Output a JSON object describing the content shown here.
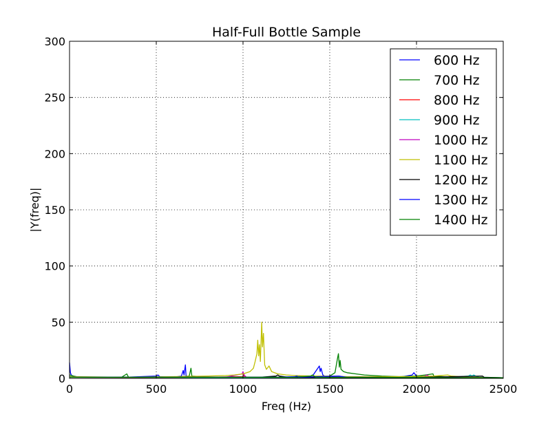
{
  "chart_data": {
    "type": "line",
    "title": "Half-Full Bottle Sample",
    "xlabel": "Freq (Hz)",
    "ylabel": "|Y(freq)|",
    "xlim": [
      0,
      2500
    ],
    "ylim": [
      0,
      300
    ],
    "xticks": [
      "0",
      "500",
      "1000",
      "1500",
      "2000",
      "2500"
    ],
    "yticks": [
      "0",
      "50",
      "100",
      "150",
      "200",
      "250",
      "300"
    ],
    "grid": true,
    "legend_position": "top-right",
    "series": [
      {
        "name": "600 Hz",
        "color": "#0000ff",
        "points": [
          [
            0,
            14
          ],
          [
            5,
            5
          ],
          [
            10,
            3
          ],
          [
            20,
            2
          ],
          [
            40,
            1.5
          ],
          [
            100,
            1
          ],
          [
            320,
            1
          ],
          [
            500,
            2
          ],
          [
            510,
            3
          ],
          [
            520,
            1.5
          ],
          [
            600,
            1
          ],
          [
            645,
            2
          ],
          [
            655,
            7
          ],
          [
            660,
            3
          ],
          [
            668,
            12
          ],
          [
            672,
            2
          ],
          [
            700,
            1
          ],
          [
            800,
            1
          ],
          [
            1000,
            1
          ],
          [
            1200,
            1
          ],
          [
            1300,
            1.5
          ],
          [
            1400,
            2
          ],
          [
            1440,
            11
          ],
          [
            1445,
            6
          ],
          [
            1450,
            9
          ],
          [
            1460,
            3
          ],
          [
            1470,
            2
          ],
          [
            1490,
            1
          ],
          [
            1550,
            2
          ],
          [
            1600,
            1
          ],
          [
            1900,
            1
          ],
          [
            1975,
            3
          ],
          [
            1985,
            5
          ],
          [
            1995,
            3
          ],
          [
            2000,
            1
          ],
          [
            2200,
            1
          ],
          [
            2500,
            0.5
          ]
        ]
      },
      {
        "name": "700 Hz",
        "color": "#008000",
        "points": [
          [
            0,
            3
          ],
          [
            50,
            1
          ],
          [
            300,
            1
          ],
          [
            330,
            4
          ],
          [
            340,
            1
          ],
          [
            600,
            1
          ],
          [
            690,
            2
          ],
          [
            700,
            9
          ],
          [
            705,
            2
          ],
          [
            800,
            1
          ],
          [
            1000,
            1
          ],
          [
            1300,
            1
          ],
          [
            1500,
            2
          ],
          [
            1530,
            5
          ],
          [
            1545,
            18
          ],
          [
            1550,
            22
          ],
          [
            1555,
            10
          ],
          [
            1560,
            16
          ],
          [
            1565,
            8
          ],
          [
            1580,
            6
          ],
          [
            1600,
            5
          ],
          [
            1650,
            4
          ],
          [
            1700,
            3
          ],
          [
            1750,
            2.5
          ],
          [
            1800,
            2
          ],
          [
            1900,
            1.5
          ],
          [
            2000,
            2
          ],
          [
            2050,
            3
          ],
          [
            2095,
            4
          ],
          [
            2100,
            2
          ],
          [
            2200,
            1
          ],
          [
            2500,
            0.5
          ]
        ]
      },
      {
        "name": "800 Hz",
        "color": "#ff0000",
        "points": [
          [
            0,
            1
          ],
          [
            400,
            0.8
          ],
          [
            800,
            1
          ],
          [
            1000,
            1.5
          ],
          [
            1005,
            4
          ],
          [
            1010,
            1
          ],
          [
            1200,
            0.8
          ],
          [
            2500,
            0.5
          ]
        ]
      },
      {
        "name": "900 Hz",
        "color": "#00bfbf",
        "points": [
          [
            0,
            1
          ],
          [
            800,
            0.8
          ],
          [
            1600,
            0.8
          ],
          [
            2000,
            1
          ],
          [
            2200,
            1
          ],
          [
            2300,
            2
          ],
          [
            2310,
            3
          ],
          [
            2320,
            2
          ],
          [
            2330,
            3
          ],
          [
            2340,
            2
          ],
          [
            2360,
            1
          ],
          [
            2500,
            0.5
          ]
        ]
      },
      {
        "name": "1000 Hz",
        "color": "#bf00bf",
        "points": [
          [
            0,
            1
          ],
          [
            900,
            1
          ],
          [
            995,
            4
          ],
          [
            1000,
            6
          ],
          [
            1005,
            3
          ],
          [
            1020,
            1
          ],
          [
            2000,
            1
          ],
          [
            2050,
            2
          ],
          [
            2060,
            3
          ],
          [
            2070,
            2
          ],
          [
            2100,
            1
          ],
          [
            2500,
            0.5
          ]
        ]
      },
      {
        "name": "1100 Hz",
        "color": "#bfbf00",
        "points": [
          [
            0,
            1.5
          ],
          [
            300,
            1
          ],
          [
            600,
            1.5
          ],
          [
            800,
            2
          ],
          [
            900,
            2.5
          ],
          [
            950,
            3
          ],
          [
            1000,
            4
          ],
          [
            1040,
            6
          ],
          [
            1060,
            9
          ],
          [
            1070,
            15
          ],
          [
            1080,
            22
          ],
          [
            1085,
            34
          ],
          [
            1090,
            20
          ],
          [
            1095,
            30
          ],
          [
            1100,
            15
          ],
          [
            1108,
            50
          ],
          [
            1112,
            28
          ],
          [
            1118,
            40
          ],
          [
            1125,
            12
          ],
          [
            1135,
            8
          ],
          [
            1150,
            11
          ],
          [
            1165,
            6
          ],
          [
            1200,
            4
          ],
          [
            1250,
            3
          ],
          [
            1300,
            2.5
          ],
          [
            1400,
            2
          ],
          [
            1500,
            2
          ],
          [
            1600,
            1.5
          ],
          [
            1800,
            1.5
          ],
          [
            2000,
            1.5
          ],
          [
            2100,
            2
          ],
          [
            2180,
            3
          ],
          [
            2200,
            2
          ],
          [
            2300,
            1
          ],
          [
            2500,
            0.5
          ]
        ]
      },
      {
        "name": "1200 Hz",
        "color": "#000000",
        "points": [
          [
            0,
            1
          ],
          [
            1100,
            1
          ],
          [
            1190,
            2
          ],
          [
            1200,
            3
          ],
          [
            1210,
            2
          ],
          [
            1260,
            1
          ],
          [
            2000,
            0.8
          ],
          [
            2380,
            2
          ],
          [
            2390,
            1
          ],
          [
            2500,
            0.5
          ]
        ]
      },
      {
        "name": "1300 Hz",
        "color": "#0000ff",
        "points": [
          [
            0,
            1
          ],
          [
            1200,
            1
          ],
          [
            1300,
            1.5
          ],
          [
            1310,
            2
          ],
          [
            1320,
            1
          ],
          [
            1550,
            2
          ],
          [
            1600,
            1
          ],
          [
            2500,
            0.5
          ]
        ]
      },
      {
        "name": "1400 Hz",
        "color": "#008000",
        "points": [
          [
            0,
            1
          ],
          [
            1300,
            1
          ],
          [
            1390,
            2
          ],
          [
            1400,
            3
          ],
          [
            1410,
            2
          ],
          [
            1420,
            1
          ],
          [
            2500,
            0.5
          ]
        ]
      }
    ]
  }
}
